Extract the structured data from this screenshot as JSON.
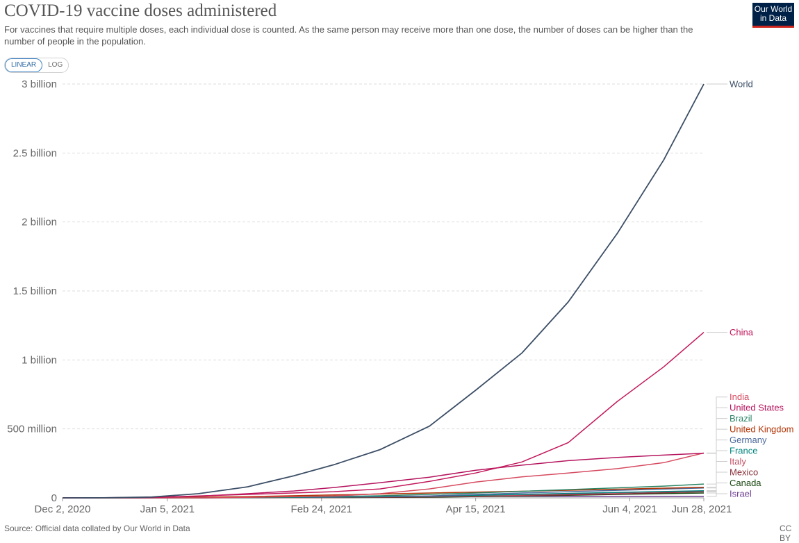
{
  "header": {
    "title": "COVID-19 vaccine doses administered",
    "subtitle": "For vaccines that require multiple doses, each individual dose is counted. As the same person may receive more than one dose, the number of doses can be higher than the number of people in the population.",
    "logo_line1": "Our World",
    "logo_line2": "in Data"
  },
  "scale_toggle": {
    "linear_label": "LINEAR",
    "log_label": "LOG",
    "selected": "LINEAR"
  },
  "footer": {
    "source": "Source: Official data collated by Our World in Data",
    "license": "CC BY"
  },
  "chart_data": {
    "type": "line",
    "title": "COVID-19 vaccine doses administered",
    "xlabel": "",
    "ylabel": "",
    "x_ticks": [
      {
        "date": "2020-12-02",
        "label": "Dec 2, 2020"
      },
      {
        "date": "2021-01-05",
        "label": "Jan 5, 2021"
      },
      {
        "date": "2021-02-24",
        "label": "Feb 24, 2021"
      },
      {
        "date": "2021-04-15",
        "label": "Apr 15, 2021"
      },
      {
        "date": "2021-06-04",
        "label": "Jun 4, 2021"
      },
      {
        "date": "2021-06-28",
        "label": "Jun 28, 2021"
      }
    ],
    "xlim": [
      "2020-12-02",
      "2021-06-28"
    ],
    "y_ticks": [
      {
        "value": 0,
        "label": "0"
      },
      {
        "value": 500000000,
        "label": "500 million"
      },
      {
        "value": 1000000000,
        "label": "1 billion"
      },
      {
        "value": 1500000000,
        "label": "1.5 billion"
      },
      {
        "value": 2000000000,
        "label": "2 billion"
      },
      {
        "value": 2500000000,
        "label": "2.5 billion"
      },
      {
        "value": 3000000000,
        "label": "3 billion"
      }
    ],
    "ylim": [
      0,
      3000000000
    ],
    "grid": true,
    "legend": "end-of-line labels, right",
    "series": [
      {
        "name": "World",
        "color": "#3c4e66",
        "points": [
          [
            "2020-12-02",
            0
          ],
          [
            "2020-12-15",
            500000
          ],
          [
            "2020-12-31",
            6000000
          ],
          [
            "2021-01-15",
            30000000
          ],
          [
            "2021-01-31",
            80000000
          ],
          [
            "2021-02-15",
            160000000
          ],
          [
            "2021-02-28",
            240000000
          ],
          [
            "2021-03-15",
            350000000
          ],
          [
            "2021-03-31",
            520000000
          ],
          [
            "2021-04-15",
            780000000
          ],
          [
            "2021-04-30",
            1050000000
          ],
          [
            "2021-05-15",
            1420000000
          ],
          [
            "2021-05-31",
            1920000000
          ],
          [
            "2021-06-15",
            2450000000
          ],
          [
            "2021-06-28",
            3000000000
          ]
        ]
      },
      {
        "name": "China",
        "color": "#c2185b",
        "points": [
          [
            "2020-12-02",
            0
          ],
          [
            "2020-12-31",
            3000000
          ],
          [
            "2021-01-31",
            25000000
          ],
          [
            "2021-02-28",
            45000000
          ],
          [
            "2021-03-15",
            65000000
          ],
          [
            "2021-03-31",
            120000000
          ],
          [
            "2021-04-15",
            180000000
          ],
          [
            "2021-04-30",
            260000000
          ],
          [
            "2021-05-15",
            400000000
          ],
          [
            "2021-05-31",
            700000000
          ],
          [
            "2021-06-15",
            950000000
          ],
          [
            "2021-06-28",
            1200000000
          ]
        ]
      },
      {
        "name": "United States",
        "color": "#b5135d",
        "points": [
          [
            "2020-12-02",
            0
          ],
          [
            "2020-12-14",
            500000
          ],
          [
            "2020-12-31",
            3000000
          ],
          [
            "2021-01-15",
            12000000
          ],
          [
            "2021-01-31",
            30000000
          ],
          [
            "2021-02-15",
            50000000
          ],
          [
            "2021-02-28",
            75000000
          ],
          [
            "2021-03-15",
            110000000
          ],
          [
            "2021-03-31",
            150000000
          ],
          [
            "2021-04-15",
            200000000
          ],
          [
            "2021-04-30",
            237000000
          ],
          [
            "2021-05-15",
            270000000
          ],
          [
            "2021-05-31",
            293000000
          ],
          [
            "2021-06-15",
            310000000
          ],
          [
            "2021-06-28",
            323000000
          ]
        ]
      },
      {
        "name": "India",
        "color": "#d64a5f",
        "points": [
          [
            "2020-12-02",
            0
          ],
          [
            "2021-01-16",
            0
          ],
          [
            "2021-01-31",
            4000000
          ],
          [
            "2021-02-28",
            14000000
          ],
          [
            "2021-03-15",
            30000000
          ],
          [
            "2021-03-31",
            65000000
          ],
          [
            "2021-04-15",
            115000000
          ],
          [
            "2021-04-30",
            152000000
          ],
          [
            "2021-05-15",
            180000000
          ],
          [
            "2021-05-31",
            212000000
          ],
          [
            "2021-06-15",
            255000000
          ],
          [
            "2021-06-28",
            325000000
          ]
        ]
      },
      {
        "name": "Brazil",
        "color": "#2c8465",
        "points": [
          [
            "2020-12-02",
            0
          ],
          [
            "2021-01-17",
            0
          ],
          [
            "2021-02-15",
            6000000
          ],
          [
            "2021-03-15",
            15000000
          ],
          [
            "2021-04-15",
            35000000
          ],
          [
            "2021-05-15",
            60000000
          ],
          [
            "2021-06-15",
            85000000
          ],
          [
            "2021-06-28",
            100000000
          ]
        ]
      },
      {
        "name": "United Kingdom",
        "color": "#b13507",
        "points": [
          [
            "2020-12-02",
            0
          ],
          [
            "2020-12-08",
            100000
          ],
          [
            "2020-12-31",
            1000000
          ],
          [
            "2021-01-31",
            9000000
          ],
          [
            "2021-02-28",
            21000000
          ],
          [
            "2021-03-31",
            35000000
          ],
          [
            "2021-04-30",
            48000000
          ],
          [
            "2021-05-31",
            63000000
          ],
          [
            "2021-06-28",
            77000000
          ]
        ]
      },
      {
        "name": "Germany",
        "color": "#4c6a9c",
        "points": [
          [
            "2020-12-02",
            0
          ],
          [
            "2020-12-27",
            0
          ],
          [
            "2021-01-31",
            3000000
          ],
          [
            "2021-02-28",
            7000000
          ],
          [
            "2021-03-31",
            14000000
          ],
          [
            "2021-04-30",
            35000000
          ],
          [
            "2021-05-31",
            55000000
          ],
          [
            "2021-06-28",
            72000000
          ]
        ]
      },
      {
        "name": "France",
        "color": "#00847e",
        "points": [
          [
            "2020-12-02",
            0
          ],
          [
            "2020-12-27",
            0
          ],
          [
            "2021-01-31",
            2000000
          ],
          [
            "2021-02-28",
            5000000
          ],
          [
            "2021-03-31",
            12000000
          ],
          [
            "2021-04-30",
            25000000
          ],
          [
            "2021-05-31",
            40000000
          ],
          [
            "2021-06-28",
            52000000
          ]
        ]
      },
      {
        "name": "Italy",
        "color": "#c15065",
        "points": [
          [
            "2020-12-02",
            0
          ],
          [
            "2020-12-27",
            0
          ],
          [
            "2021-01-31",
            2000000
          ],
          [
            "2021-02-28",
            5000000
          ],
          [
            "2021-03-31",
            10000000
          ],
          [
            "2021-04-30",
            20000000
          ],
          [
            "2021-05-31",
            36000000
          ],
          [
            "2021-06-28",
            50000000
          ]
        ]
      },
      {
        "name": "Mexico",
        "color": "#883039",
        "points": [
          [
            "2020-12-02",
            0
          ],
          [
            "2020-12-24",
            0
          ],
          [
            "2021-01-31",
            700000
          ],
          [
            "2021-02-28",
            2500000
          ],
          [
            "2021-03-31",
            7000000
          ],
          [
            "2021-04-30",
            16000000
          ],
          [
            "2021-05-31",
            28000000
          ],
          [
            "2021-06-28",
            45000000
          ]
        ]
      },
      {
        "name": "Canada",
        "color": "#18470f",
        "points": [
          [
            "2020-12-02",
            0
          ],
          [
            "2020-12-14",
            0
          ],
          [
            "2021-01-31",
            1000000
          ],
          [
            "2021-02-28",
            1800000
          ],
          [
            "2021-03-31",
            5000000
          ],
          [
            "2021-04-30",
            13000000
          ],
          [
            "2021-05-31",
            25000000
          ],
          [
            "2021-06-28",
            35000000
          ]
        ]
      },
      {
        "name": "Israel",
        "color": "#6d3e91",
        "points": [
          [
            "2020-12-02",
            0
          ],
          [
            "2020-12-20",
            0
          ],
          [
            "2021-01-15",
            2500000
          ],
          [
            "2021-01-31",
            4500000
          ],
          [
            "2021-02-28",
            8000000
          ],
          [
            "2021-03-31",
            10000000
          ],
          [
            "2021-04-30",
            10500000
          ],
          [
            "2021-06-28",
            11000000
          ]
        ]
      }
    ]
  }
}
